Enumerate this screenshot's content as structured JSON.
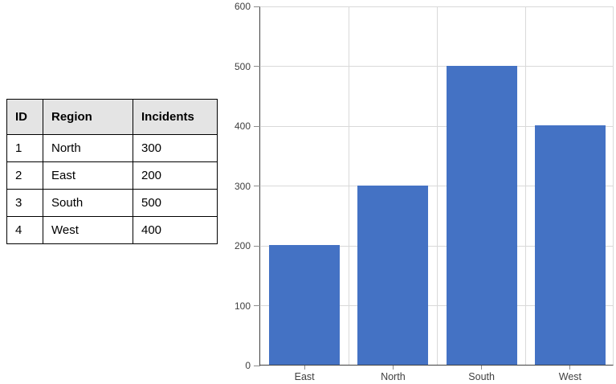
{
  "table": {
    "headers": [
      "ID",
      "Region",
      "Incidents"
    ],
    "rows": [
      {
        "id": "1",
        "region": "North",
        "incidents": "300"
      },
      {
        "id": "2",
        "region": "East",
        "incidents": "200"
      },
      {
        "id": "3",
        "region": "South",
        "incidents": "500"
      },
      {
        "id": "4",
        "region": "West",
        "incidents": "400"
      }
    ],
    "header_bg": "#e4e4e4",
    "border_color": "#000000"
  },
  "chart_data": {
    "type": "bar",
    "categories": [
      "East",
      "North",
      "South",
      "West"
    ],
    "values": [
      200,
      300,
      500,
      400
    ],
    "title": "",
    "xlabel": "",
    "ylabel": "",
    "ylim": [
      0,
      600
    ],
    "yticks": [
      0,
      100,
      200,
      300,
      400,
      500,
      600
    ],
    "grid": true,
    "legend": "none",
    "bar_color": "#4472c4",
    "gridline_color": "#d9d9d9",
    "axis_color": "#404040",
    "tick_color": "#8c8c8c",
    "tick_label_color": "#404040"
  }
}
